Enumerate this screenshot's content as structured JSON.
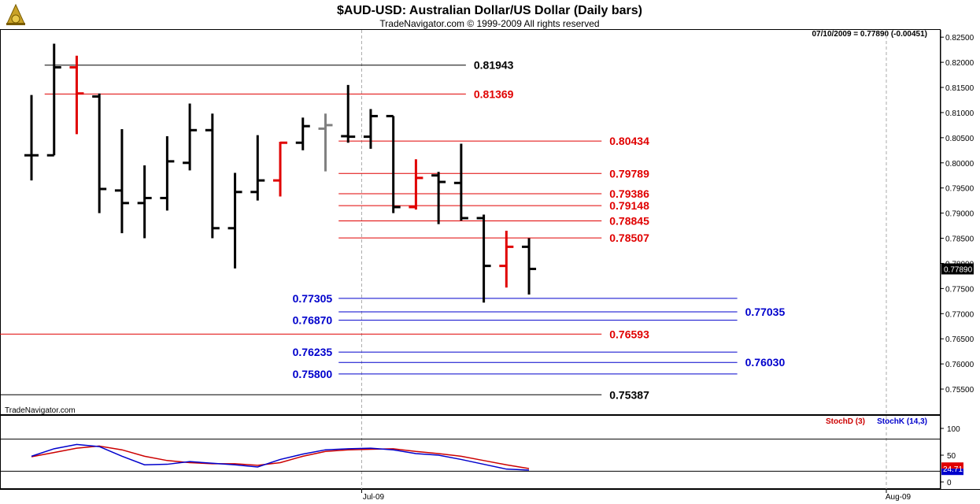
{
  "header": {
    "title": "$AUD-USD:  Australian Dollar/US Dollar  (Daily bars)",
    "subtitle": "TradeNavigator.com © 1999-2009 All rights reserved",
    "quote": "07/10/2009 = 0.77890 (-0.00451)",
    "watermark": "TradeNavigator.com",
    "logo_icon": "sextant-logo-icon"
  },
  "colors": {
    "up": "#000000",
    "down": "#e00000",
    "neutral": "#808080",
    "support": "#0000cc",
    "resistance": "#e00000",
    "stochD": "#cc0000",
    "stochK": "#0000cc"
  },
  "chart_data": [
    {
      "type": "ohlc",
      "title": "$AUD-USD:  Australian Dollar/US Dollar  (Daily bars)",
      "ylim": [
        0.7525,
        0.8255
      ],
      "y_ticks": [
        "0.82500",
        "0.82000",
        "0.81500",
        "0.81000",
        "0.80500",
        "0.80000",
        "0.79500",
        "0.79000",
        "0.78500",
        "0.78000",
        "0.77500",
        "0.77000",
        "0.76500",
        "0.76000",
        "0.75500"
      ],
      "x_tick_labels": [
        "Jul-09",
        "Aug-09"
      ],
      "last_price": "0.77890",
      "bars": [
        {
          "o": 0.8015,
          "h": 0.8135,
          "l": 0.7965,
          "c": 0.8015,
          "color": "up"
        },
        {
          "o": 0.8015,
          "h": 0.8237,
          "l": 0.8015,
          "c": 0.819,
          "color": "up"
        },
        {
          "o": 0.819,
          "h": 0.8213,
          "l": 0.8057,
          "c": 0.8138,
          "color": "down"
        },
        {
          "o": 0.8132,
          "h": 0.8138,
          "l": 0.79,
          "c": 0.7948,
          "color": "up"
        },
        {
          "o": 0.7945,
          "h": 0.8067,
          "l": 0.786,
          "c": 0.792,
          "color": "up"
        },
        {
          "o": 0.792,
          "h": 0.7995,
          "l": 0.785,
          "c": 0.793,
          "color": "up"
        },
        {
          "o": 0.793,
          "h": 0.8053,
          "l": 0.7905,
          "c": 0.8003,
          "color": "up"
        },
        {
          "o": 0.8,
          "h": 0.8118,
          "l": 0.7985,
          "c": 0.8065,
          "color": "up"
        },
        {
          "o": 0.8065,
          "h": 0.8098,
          "l": 0.785,
          "c": 0.787,
          "color": "up"
        },
        {
          "o": 0.787,
          "h": 0.798,
          "l": 0.779,
          "c": 0.7942,
          "color": "up"
        },
        {
          "o": 0.7942,
          "h": 0.8055,
          "l": 0.7925,
          "c": 0.7965,
          "color": "up"
        },
        {
          "o": 0.7965,
          "h": 0.8042,
          "l": 0.7933,
          "c": 0.804,
          "color": "down"
        },
        {
          "o": 0.804,
          "h": 0.809,
          "l": 0.8025,
          "c": 0.8073,
          "color": "up"
        },
        {
          "o": 0.8068,
          "h": 0.8098,
          "l": 0.7983,
          "c": 0.8075,
          "color": "neutral"
        },
        {
          "o": 0.8053,
          "h": 0.8155,
          "l": 0.804,
          "c": 0.8052,
          "color": "up"
        },
        {
          "o": 0.8052,
          "h": 0.8107,
          "l": 0.8028,
          "c": 0.8093,
          "color": "up"
        },
        {
          "o": 0.8093,
          "h": 0.8093,
          "l": 0.79,
          "c": 0.7912,
          "color": "up"
        },
        {
          "o": 0.7912,
          "h": 0.8007,
          "l": 0.7907,
          "c": 0.797,
          "color": "down"
        },
        {
          "o": 0.7975,
          "h": 0.7982,
          "l": 0.7878,
          "c": 0.7962,
          "color": "up"
        },
        {
          "o": 0.796,
          "h": 0.8038,
          "l": 0.7885,
          "c": 0.789,
          "color": "up"
        },
        {
          "o": 0.789,
          "h": 0.7897,
          "l": 0.7722,
          "c": 0.7795,
          "color": "up"
        },
        {
          "o": 0.7795,
          "h": 0.7865,
          "l": 0.7752,
          "c": 0.7833,
          "color": "down"
        },
        {
          "o": 0.7833,
          "h": 0.785,
          "l": 0.7738,
          "c": 0.7789,
          "color": "up"
        }
      ],
      "levels": [
        {
          "value": 0.81943,
          "label": "0.81943",
          "color": "#000000",
          "start": 1,
          "end": 19,
          "side": "right"
        },
        {
          "value": 0.81369,
          "label": "0.81369",
          "color": "#e00000",
          "start": 1,
          "end": 19,
          "side": "right"
        },
        {
          "value": 0.80434,
          "label": "0.80434",
          "color": "#e00000",
          "start": 14,
          "end": 25,
          "side": "right"
        },
        {
          "value": 0.79789,
          "label": "0.79789",
          "color": "#e00000",
          "start": 14,
          "end": 25,
          "side": "right"
        },
        {
          "value": 0.79386,
          "label": "0.79386",
          "color": "#e00000",
          "start": 14,
          "end": 25,
          "side": "right"
        },
        {
          "value": 0.79148,
          "label": "0.79148",
          "color": "#e00000",
          "start": 14,
          "end": 25,
          "side": "right"
        },
        {
          "value": 0.78845,
          "label": "0.78845",
          "color": "#e00000",
          "start": 14,
          "end": 25,
          "side": "right"
        },
        {
          "value": 0.78507,
          "label": "0.78507",
          "color": "#e00000",
          "start": 14,
          "end": 25,
          "side": "right"
        },
        {
          "value": 0.77305,
          "label": "0.77305",
          "color": "#0000cc",
          "start": 14,
          "end": 31,
          "side": "left"
        },
        {
          "value": 0.77035,
          "label": "0.77035",
          "color": "#0000cc",
          "start": 14,
          "end": 31,
          "side": "right"
        },
        {
          "value": 0.7687,
          "label": "0.76870",
          "color": "#0000cc",
          "start": 14,
          "end": 31,
          "side": "left"
        },
        {
          "value": 0.76593,
          "label": "0.76593",
          "color": "#e00000",
          "start": -2,
          "end": 25,
          "side": "right"
        },
        {
          "value": 0.76235,
          "label": "0.76235",
          "color": "#0000cc",
          "start": 14,
          "end": 31,
          "side": "left"
        },
        {
          "value": 0.7603,
          "label": "0.76030",
          "color": "#0000cc",
          "start": 14,
          "end": 31,
          "side": "right"
        },
        {
          "value": 0.758,
          "label": "0.75800",
          "color": "#0000cc",
          "start": 14,
          "end": 31,
          "side": "left"
        },
        {
          "value": 0.75387,
          "label": "0.75387",
          "color": "#000000",
          "start": -2,
          "end": 25,
          "side": "right"
        }
      ]
    },
    {
      "type": "line",
      "ylim": [
        0,
        100
      ],
      "y_ticks": [
        "100",
        "50",
        "0"
      ],
      "reference_lines": [
        80,
        20
      ],
      "legend": [
        "StochD (3)",
        "StochK (14,3)"
      ],
      "last_value": "24.71",
      "series": [
        {
          "name": "StochD (3)",
          "color": "#cc0000",
          "values": [
            47,
            55,
            63,
            67,
            60,
            48,
            40,
            36,
            34,
            34,
            31,
            36,
            48,
            57,
            60,
            61,
            62,
            57,
            53,
            48,
            40,
            32,
            25
          ]
        },
        {
          "name": "StochK (14,3)",
          "color": "#0000cc",
          "values": [
            48,
            62,
            70,
            66,
            48,
            32,
            33,
            38,
            35,
            32,
            28,
            42,
            52,
            60,
            62,
            63,
            60,
            53,
            50,
            42,
            33,
            24,
            22
          ]
        }
      ]
    }
  ]
}
